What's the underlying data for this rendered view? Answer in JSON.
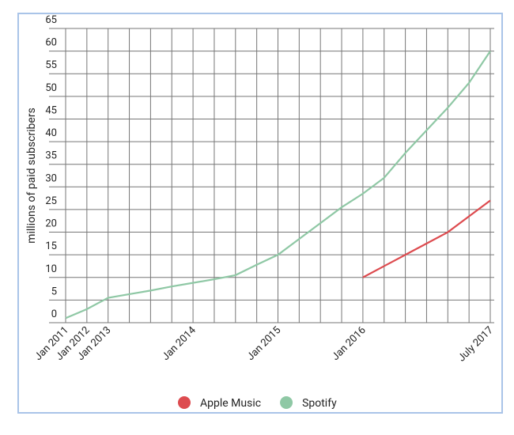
{
  "chart_data": {
    "type": "line",
    "y_label": "millions of paid subscribers",
    "categories": [
      "Jan 2011",
      "Jan 2012",
      "Jan 2013",
      null,
      null,
      null,
      "Jan 2014",
      null,
      null,
      null,
      "Jan 2015",
      null,
      null,
      null,
      "Jan 2016",
      null,
      null,
      null,
      null,
      null,
      "July 2017"
    ],
    "series": [
      {
        "name": "Apple Music",
        "color": "#dd4b4f",
        "values": [
          null,
          null,
          null,
          null,
          null,
          null,
          null,
          null,
          null,
          null,
          null,
          null,
          null,
          null,
          10,
          12.5,
          15,
          17.5,
          20,
          23.5,
          27
        ]
      },
      {
        "name": "Spotify",
        "color": "#8fc8a5",
        "values": [
          1,
          3,
          5.5,
          6.3,
          7.1,
          8,
          8.8,
          9.6,
          10.5,
          12.8,
          15,
          18.5,
          22,
          25.5,
          28.5,
          32,
          37.5,
          42.5,
          47.5,
          53,
          60
        ]
      }
    ],
    "ylim": [
      0,
      65
    ],
    "yticks": [
      0,
      5,
      10,
      15,
      20,
      25,
      30,
      35,
      40,
      45,
      50,
      55,
      60,
      65
    ],
    "grid": true,
    "legend": "bottom"
  }
}
